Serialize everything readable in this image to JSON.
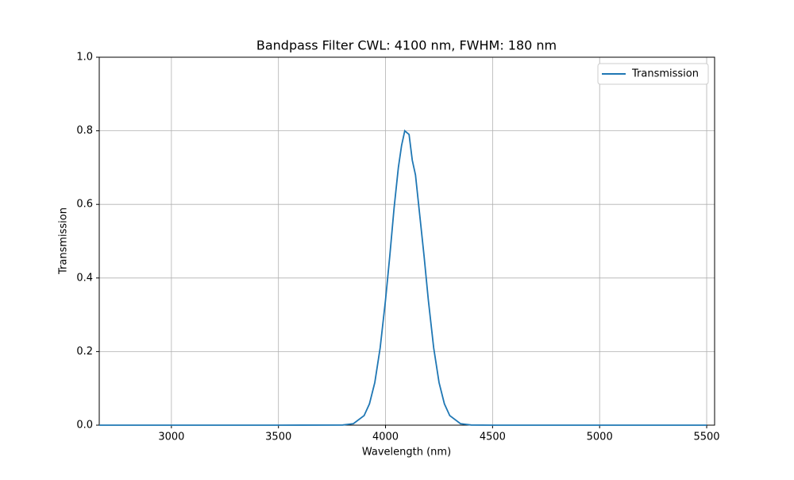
{
  "chart_data": {
    "type": "line",
    "title": "Bandpass Filter CWL: 4100 nm, FWHM: 180 nm",
    "x_label": "Wavelength (nm)",
    "y_label": "Transmission",
    "x": [
      2663,
      3000,
      3500,
      3800,
      3850,
      3900,
      3925,
      3950,
      3975,
      4000,
      4020,
      4040,
      4060,
      4075,
      4090,
      4100,
      4110,
      4125,
      4140,
      4160,
      4180,
      4200,
      4225,
      4250,
      4275,
      4300,
      4350,
      4400,
      4500,
      5000,
      5500
    ],
    "series": [
      {
        "name": "Transmission",
        "color": "#1f77b4",
        "values": [
          0,
          0,
          0,
          0.0004,
          0.004,
          0.026,
          0.058,
          0.116,
          0.21,
          0.34,
          0.46,
          0.59,
          0.7,
          0.76,
          0.8,
          0.795,
          0.79,
          0.72,
          0.68,
          0.57,
          0.46,
          0.34,
          0.21,
          0.116,
          0.058,
          0.026,
          0.004,
          0.0004,
          0,
          0,
          0
        ]
      }
    ],
    "xlim": [
      2663,
      5537
    ],
    "ylim": [
      0,
      1
    ],
    "xticks": [
      3000,
      3500,
      4000,
      4500,
      5000,
      5500
    ],
    "yticks": [
      {
        "value": 0,
        "label": "0.0"
      },
      {
        "value": 0.2,
        "label": "0.2"
      },
      {
        "value": 0.4,
        "label": "0.4"
      },
      {
        "value": 0.6,
        "label": "0.6"
      },
      {
        "value": 0.8,
        "label": "0.8"
      },
      {
        "value": 1,
        "label": "1.0"
      }
    ],
    "grid": true,
    "legend": "upper right"
  }
}
